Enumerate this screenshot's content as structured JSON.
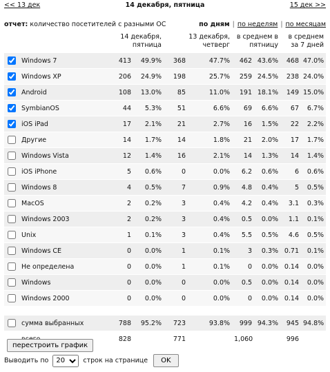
{
  "nav": {
    "prev": "<< 13 дек",
    "current": "14 декабря, пятница",
    "next": "15 дек >>"
  },
  "report": {
    "label": "отчет:",
    "title": "количество посетителей с разными ОС",
    "periods": [
      "по дням",
      "по неделям",
      "по месяцам"
    ],
    "separator": "|"
  },
  "table": {
    "columns": [
      "14 декабря, пятница",
      "13 декабря, четверг",
      "в среднем в пятницу",
      "в среднем за 7 дней"
    ],
    "rows": [
      {
        "name": "Windows 7",
        "checked": true,
        "cells": [
          "413",
          "49.9%",
          "368",
          "47.7%",
          "462",
          "43.6%",
          "468",
          "47.0%"
        ]
      },
      {
        "name": "Windows XP",
        "checked": true,
        "cells": [
          "206",
          "24.9%",
          "198",
          "25.7%",
          "259",
          "24.5%",
          "238",
          "24.0%"
        ]
      },
      {
        "name": "Android",
        "checked": true,
        "cells": [
          "108",
          "13.0%",
          "85",
          "11.0%",
          "191",
          "18.1%",
          "149",
          "15.0%"
        ]
      },
      {
        "name": "SymbianOS",
        "checked": true,
        "cells": [
          "44",
          "5.3%",
          "51",
          "6.6%",
          "69",
          "6.6%",
          "67",
          "6.7%"
        ]
      },
      {
        "name": "iOS iPad",
        "checked": true,
        "cells": [
          "17",
          "2.1%",
          "21",
          "2.7%",
          "16",
          "1.5%",
          "22",
          "2.2%"
        ]
      },
      {
        "name": "Другие",
        "checked": false,
        "cells": [
          "14",
          "1.7%",
          "14",
          "1.8%",
          "21",
          "2.0%",
          "17",
          "1.7%"
        ]
      },
      {
        "name": "Windows Vista",
        "checked": false,
        "cells": [
          "12",
          "1.4%",
          "16",
          "2.1%",
          "14",
          "1.3%",
          "14",
          "1.4%"
        ]
      },
      {
        "name": "iOS iPhone",
        "checked": false,
        "cells": [
          "5",
          "0.6%",
          "0",
          "0.0%",
          "6.2",
          "0.6%",
          "6",
          "0.6%"
        ]
      },
      {
        "name": "Windows 8",
        "checked": false,
        "cells": [
          "4",
          "0.5%",
          "7",
          "0.9%",
          "4.8",
          "0.4%",
          "5",
          "0.5%"
        ]
      },
      {
        "name": "MacOS",
        "checked": false,
        "cells": [
          "2",
          "0.2%",
          "3",
          "0.4%",
          "4.2",
          "0.4%",
          "3.1",
          "0.3%"
        ]
      },
      {
        "name": "Windows 2003",
        "checked": false,
        "cells": [
          "2",
          "0.2%",
          "3",
          "0.4%",
          "0.5",
          "0.0%",
          "1.1",
          "0.1%"
        ]
      },
      {
        "name": "Unix",
        "checked": false,
        "cells": [
          "1",
          "0.1%",
          "3",
          "0.4%",
          "5.5",
          "0.5%",
          "4.6",
          "0.5%"
        ]
      },
      {
        "name": "Windows CE",
        "checked": false,
        "cells": [
          "0",
          "0.0%",
          "1",
          "0.1%",
          "3",
          "0.3%",
          "0.71",
          "0.1%"
        ]
      },
      {
        "name": "Не определена",
        "checked": false,
        "cells": [
          "0",
          "0.0%",
          "1",
          "0.1%",
          "0",
          "0.0%",
          "0.14",
          "0.0%"
        ]
      },
      {
        "name": "Windows",
        "checked": false,
        "cells": [
          "0",
          "0.0%",
          "0",
          "0.0%",
          "0.5",
          "0.0%",
          "0.14",
          "0.0%"
        ]
      },
      {
        "name": "Windows 2000",
        "checked": false,
        "cells": [
          "0",
          "0.0%",
          "0",
          "0.0%",
          "0",
          "0.0%",
          "0.14",
          "0.0%"
        ]
      }
    ],
    "summary": {
      "name": "сумма выбранных",
      "checked": false,
      "cells": [
        "788",
        "95.2%",
        "723",
        "93.8%",
        "999",
        "94.3%",
        "945",
        "94.8%"
      ]
    },
    "total": {
      "name": "всего",
      "cells": [
        "828",
        "771",
        "1,060",
        "996"
      ]
    }
  },
  "controls": {
    "rebuild": "перестроить график",
    "per_page_label": "Выводить по",
    "per_page": "20",
    "per_page_suffix": "строк на странице",
    "ok": "OK"
  }
}
